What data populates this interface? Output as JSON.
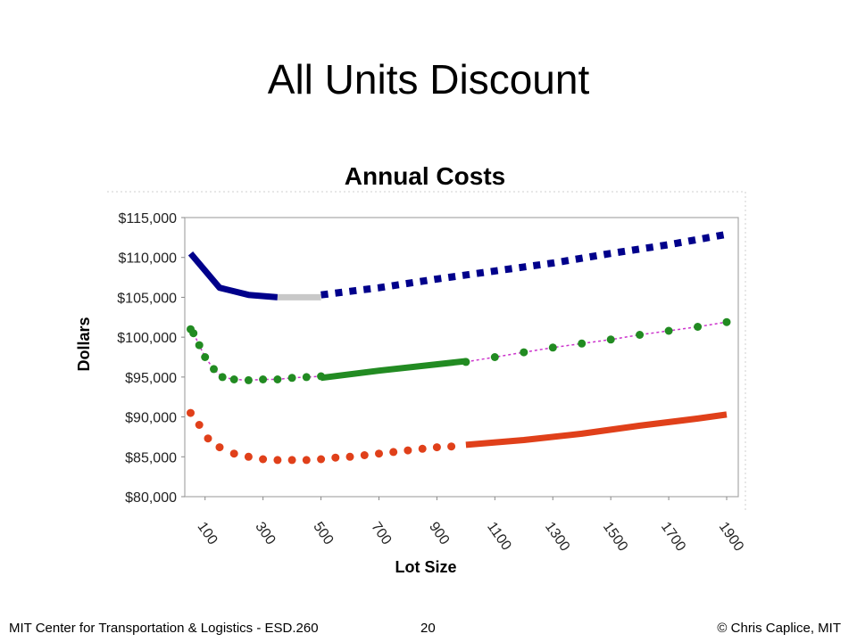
{
  "slide": {
    "title": "All Units Discount"
  },
  "footer": {
    "left": "MIT Center for Transportation & Logistics - ESD.260",
    "page_number": "20",
    "right": "© Chris Caplice, MIT"
  },
  "chart_data": {
    "type": "line",
    "title": "Annual Costs",
    "xlabel": "Lot Size",
    "ylabel": "Dollars",
    "x_ticks": [
      100,
      300,
      500,
      700,
      900,
      1100,
      1300,
      1500,
      1700,
      1900
    ],
    "y_ticks": [
      "$80,000",
      "$85,000",
      "$90,000",
      "$95,000",
      "$100,000",
      "$105,000",
      "$110,000",
      "$115,000"
    ],
    "xlim": [
      30,
      1940
    ],
    "ylim": [
      80000,
      115000
    ],
    "grid": false,
    "series": [
      {
        "color": "#00008b",
        "segments": [
          {
            "style": "solid",
            "x": [
              50,
              150,
              250,
              350
            ],
            "y": [
              110500,
              106200,
              105300,
              105000
            ]
          },
          {
            "style": "solid-gray",
            "color": "#c8c8c8",
            "x": [
              350,
              500
            ],
            "y": [
              105000,
              105000
            ]
          },
          {
            "style": "square-dots",
            "x": [
              500,
              700,
              900,
              1100,
              1300,
              1500,
              1700,
              1900
            ],
            "y": [
              105300,
              106200,
              107300,
              108300,
              109300,
              110500,
              111600,
              112900
            ]
          }
        ]
      },
      {
        "color": "#228b22",
        "dashed_color": "#cc33cc",
        "segments": [
          {
            "style": "dots",
            "x": [
              50,
              60,
              80,
              100,
              130,
              160,
              200,
              250,
              300,
              350,
              400,
              450,
              500
            ],
            "y": [
              101000,
              100500,
              99000,
              97500,
              96000,
              95000,
              94700,
              94600,
              94700,
              94700,
              94900,
              95000,
              95100
            ]
          },
          {
            "style": "solid",
            "x": [
              500,
              700,
              1000
            ],
            "y": [
              94900,
              95800,
              97000
            ]
          },
          {
            "style": "dots",
            "x": [
              1000,
              1100,
              1200,
              1300,
              1400,
              1500,
              1600,
              1700,
              1800,
              1900
            ],
            "y": [
              96900,
              97500,
              98100,
              98700,
              99200,
              99700,
              100300,
              100800,
              101300,
              101900
            ]
          }
        ]
      },
      {
        "color": "#e0401a",
        "segments": [
          {
            "style": "dots",
            "x": [
              50,
              80,
              110,
              150,
              200,
              250,
              300,
              350,
              400,
              450,
              500,
              550,
              600,
              650,
              700,
              750,
              800,
              850,
              900,
              950
            ],
            "y": [
              90500,
              89000,
              87300,
              86200,
              85400,
              85000,
              84700,
              84600,
              84600,
              84600,
              84700,
              84900,
              85000,
              85200,
              85400,
              85600,
              85800,
              86000,
              86200,
              86300
            ]
          },
          {
            "style": "solid",
            "x": [
              1000,
              1200,
              1400,
              1600,
              1800,
              1900
            ],
            "y": [
              86500,
              87100,
              87900,
              88900,
              89800,
              90300
            ]
          }
        ]
      }
    ]
  }
}
